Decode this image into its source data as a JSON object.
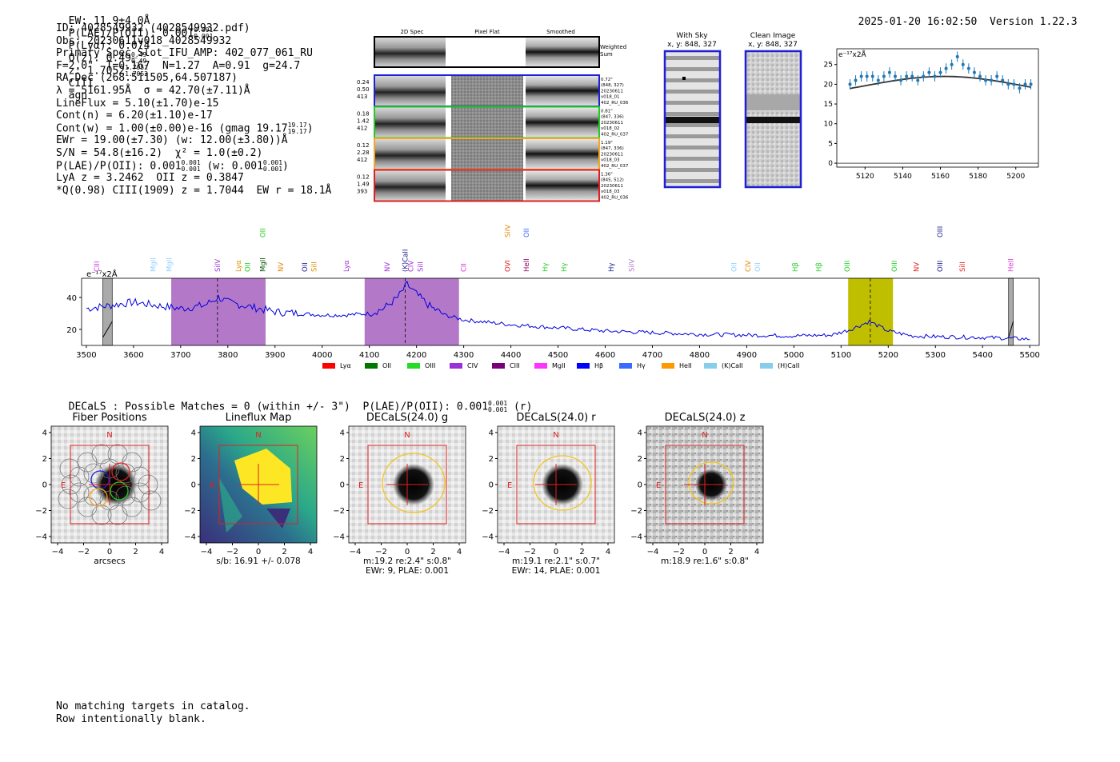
{
  "header": {
    "ew_label": "EW: 11.9±4.0Å",
    "plae_label": "P(LAE)/P(OII): 0.001",
    "plae_hi": "0.001",
    "plae_lo": "0.001",
    "plya_label": "P(Lyα): 0.074",
    "qz_label": "Q(z): 0.49",
    "qz_hi": "0.49",
    "qz_lo": "0.49",
    "z_label": "z: 1.7052",
    "z_hi": "1.7052",
    "z_lo": "1.7052",
    "line_label": "CIII",
    "class_label": "agn",
    "timestamp": "2025-01-20 16:02:50",
    "version": "Version 1.22.3"
  },
  "info": {
    "id": "ID: 4028549932 (4028549932.pdf)",
    "obs": "Obs: 20230611v018_4028549932",
    "primary": "Primary Spec_Slot_IFU_AMP: 402_077_061_RU",
    "params": "F=2.0\"  T=0.167  N=1.27  A=0.91  g=24.7",
    "radec": "RA,Dec (268.511505,64.507187)",
    "lambda": "λ = 5161.95Å  σ = 42.70(±7.11)Å",
    "lineflux": "LineFlux = 5.10(±1.70)e-15",
    "contn": "Cont(n) = 6.20(±1.10)e-17",
    "contw": "Cont(w) = 1.00(±0.00)e-16 (gmag 19.17",
    "gmag_hi": "19.17",
    "gmag_lo": "19.17",
    "contw_end": ")",
    "ewr": "EWr = 19.00(±7.30) (w: 12.00(±3.80))Å",
    "sn": "S/N = 54.8(±16.2)  χ² = 1.0(±0.2)",
    "plae": "P(LAE)/P(OII): 0.001",
    "plae_hi": "0.001",
    "plae_lo": "0.001",
    "plae_w": " (w: 0.001",
    "plae_w_hi": "0.001",
    "plae_w_lo": "0.001",
    "plae_end": ")",
    "lya": "LyA z = 3.2462  OII z = 0.3847",
    "ciii": "*Q(0.98) CIII(1909) z = 1.7044  EW r = 18.1Å"
  },
  "spec2d": {
    "headers": [
      "2D Spec",
      "Pixel Flat",
      "Smoothed"
    ],
    "sum_label": [
      "Weighted",
      "Sum"
    ],
    "rows": [
      {
        "left": [
          "0.24",
          "0.50",
          "413"
        ],
        "right": [
          "0.72\"",
          "(848, 327)",
          "20230611",
          "v018_01",
          "402_RU_036"
        ],
        "color": "#1f1fd6"
      },
      {
        "left": [
          "0.18",
          "1.42",
          "412"
        ],
        "right": [
          "0.81\"",
          "(847, 336)",
          "20230611",
          "v018_02",
          "402_RU_037"
        ],
        "color": "#22cc22"
      },
      {
        "left": [
          "0.12",
          "2.28",
          "412"
        ],
        "right": [
          "1.19\"",
          "(847, 336)",
          "20230611",
          "v018_03",
          "402_RU_037"
        ],
        "color": "#f5a623"
      },
      {
        "left": [
          "0.12",
          "1.49",
          "393"
        ],
        "right": [
          "1.36\"",
          "(845, 512)",
          "20230611",
          "v018_03",
          "402_RU_036"
        ],
        "color": "#e02020"
      }
    ]
  },
  "sky": {
    "with_sky_title": "With Sky",
    "with_sky_coord": "x, y: 848, 327",
    "clean_title": "Clean Image",
    "clean_coord": "x, y: 848, 327"
  },
  "chart_data": [
    {
      "type": "scatter",
      "title": "",
      "unit_label": "e⁻¹⁷x2Å",
      "x": [
        5112,
        5115,
        5118,
        5121,
        5124,
        5127,
        5130,
        5133,
        5136,
        5139,
        5142,
        5145,
        5148,
        5151,
        5154,
        5157,
        5160,
        5163,
        5166,
        5169,
        5172,
        5175,
        5178,
        5181,
        5184,
        5187,
        5190,
        5193,
        5196,
        5199,
        5202,
        5205,
        5208
      ],
      "y": [
        20,
        21,
        22,
        22,
        22,
        21,
        22,
        23,
        22,
        21,
        22,
        22,
        21,
        22,
        23,
        22,
        23,
        24,
        25,
        27,
        25,
        24,
        23,
        22,
        21,
        21,
        22,
        21,
        20,
        20,
        19,
        20,
        20
      ],
      "model": {
        "type": "gaussian",
        "center": 5161.95,
        "peak": 22,
        "base": 15.8,
        "sigma": 42.7
      },
      "xticks": [
        5120,
        5140,
        5160,
        5180,
        5200
      ],
      "yticks": [
        0,
        5,
        10,
        15,
        20,
        25
      ],
      "xlim": [
        5105,
        5212
      ],
      "ylim": [
        -1,
        29
      ]
    },
    {
      "type": "line",
      "title": "",
      "unit_label": "e⁻¹⁷x2Å",
      "xticks": [
        3500,
        3600,
        3700,
        3800,
        3900,
        4000,
        4100,
        4200,
        4300,
        4400,
        4500,
        4600,
        4700,
        4800,
        4900,
        5000,
        5100,
        5200,
        5300,
        5400,
        5500
      ],
      "yticks": [
        20,
        40
      ],
      "xlim": [
        3490,
        5520
      ],
      "ylim": [
        10,
        52
      ],
      "continuum_points": [
        [
          3500,
          33
        ],
        [
          3550,
          35
        ],
        [
          3600,
          37
        ],
        [
          3650,
          35
        ],
        [
          3700,
          33
        ],
        [
          3750,
          35
        ],
        [
          3780,
          40
        ],
        [
          3800,
          37
        ],
        [
          3850,
          34
        ],
        [
          3900,
          31
        ],
        [
          3950,
          30
        ],
        [
          4000,
          29
        ],
        [
          4050,
          29
        ],
        [
          4100,
          30
        ],
        [
          4130,
          33
        ],
        [
          4160,
          40
        ],
        [
          4180,
          48
        ],
        [
          4200,
          42
        ],
        [
          4230,
          34
        ],
        [
          4260,
          29
        ],
        [
          4300,
          26
        ],
        [
          4400,
          23
        ],
        [
          4500,
          21
        ],
        [
          4600,
          19
        ],
        [
          4700,
          18
        ],
        [
          4800,
          17
        ],
        [
          4900,
          16.5
        ],
        [
          5000,
          16
        ],
        [
          5080,
          16.5
        ],
        [
          5120,
          20
        ],
        [
          5160,
          25
        ],
        [
          5200,
          19
        ],
        [
          5250,
          16
        ],
        [
          5300,
          15.5
        ],
        [
          5400,
          15
        ],
        [
          5500,
          14
        ]
      ],
      "highlight_regions": [
        {
          "x0": 3680,
          "x1": 3880,
          "color": "#b478c8"
        },
        {
          "x0": 4090,
          "x1": 4290,
          "color": "#b478c8"
        },
        {
          "x0": 5115,
          "x1": 5210,
          "color": "#bfbf00"
        }
      ],
      "dashed_lines": [
        3778,
        4176,
        5162
      ],
      "hatched_regions": [
        [
          3535,
          3555
        ],
        [
          5455,
          5465
        ]
      ],
      "line_markers": [
        {
          "x": 3522,
          "name": "CIII",
          "color": "#d633d6"
        },
        {
          "x": 3642,
          "name": "MgII",
          "color": "#8fd0ff"
        },
        {
          "x": 3676,
          "name": "MgII",
          "color": "#8fd0ff"
        },
        {
          "x": 3778,
          "name": "SiIV",
          "color": "#9b30d9"
        },
        {
          "x": 3822,
          "name": "Lyα",
          "color": "#e08a00"
        },
        {
          "x": 3842,
          "name": "OII",
          "color": "#22cc22"
        },
        {
          "x": 3874,
          "name": "MgII",
          "color": "#005500"
        },
        {
          "x": 3874,
          "name": "OII",
          "color": "#22cc22",
          "high": true
        },
        {
          "x": 3912,
          "name": "NV",
          "color": "#e08a00"
        },
        {
          "x": 3963,
          "name": "OII",
          "color": "#1a1a8c"
        },
        {
          "x": 3983,
          "name": "SiII",
          "color": "#e08a00"
        },
        {
          "x": 4051,
          "name": "Lyα",
          "color": "#9b30d9"
        },
        {
          "x": 4138,
          "name": "NV",
          "color": "#9b30d9"
        },
        {
          "x": 4176,
          "name": "(K)CaII",
          "color": "#1a1a8c"
        },
        {
          "x": 4188,
          "name": "CIV",
          "color": "#9b30d9"
        },
        {
          "x": 4208,
          "name": "SiII",
          "color": "#9b30d9"
        },
        {
          "x": 4300,
          "name": "CII",
          "color": "#d633d6"
        },
        {
          "x": 4393,
          "name": "OVI",
          "color": "#e02020"
        },
        {
          "x": 4393,
          "name": "SiIV",
          "color": "#e08a00",
          "high": true
        },
        {
          "x": 4433,
          "name": "HeII",
          "color": "#8b005a"
        },
        {
          "x": 4433,
          "name": "OII",
          "color": "#3a6aff",
          "high": true
        },
        {
          "x": 4473,
          "name": "Hγ",
          "color": "#22cc22"
        },
        {
          "x": 4513,
          "name": "Hγ",
          "color": "#22cc22"
        },
        {
          "x": 4613,
          "name": "Hγ",
          "color": "#1a1a8c"
        },
        {
          "x": 4656,
          "name": "SiIV",
          "color": "#b478c8"
        },
        {
          "x": 4873,
          "name": "OII",
          "color": "#8fd0ff"
        },
        {
          "x": 4903,
          "name": "CIV",
          "color": "#e08a00"
        },
        {
          "x": 4923,
          "name": "OII",
          "color": "#8fd0ff"
        },
        {
          "x": 5003,
          "name": "Hβ",
          "color": "#22cc22"
        },
        {
          "x": 5053,
          "name": "Hβ",
          "color": "#22cc22"
        },
        {
          "x": 5113,
          "name": "OIII",
          "color": "#22cc22"
        },
        {
          "x": 5213,
          "name": "OIII",
          "color": "#22cc22"
        },
        {
          "x": 5260,
          "name": "NV",
          "color": "#e02020"
        },
        {
          "x": 5310,
          "name": "OIII",
          "color": "#1a1a8c"
        },
        {
          "x": 5310,
          "name": "OIII",
          "color": "#1a1a8c",
          "high": true
        },
        {
          "x": 5357,
          "name": "SiII",
          "color": "#e02020"
        },
        {
          "x": 5460,
          "name": "HeII",
          "color": "#d633d6"
        }
      ],
      "legend": [
        {
          "name": "Lyα",
          "color": "#ff0000"
        },
        {
          "name": "OII",
          "color": "#007700"
        },
        {
          "name": "OIII",
          "color": "#22dd22"
        },
        {
          "name": "CIV",
          "color": "#9b30d9"
        },
        {
          "name": "CIII",
          "color": "#7a007a"
        },
        {
          "name": "MgII",
          "color": "#ff33ff"
        },
        {
          "name": "Hβ",
          "color": "#0000ff"
        },
        {
          "name": "Hγ",
          "color": "#3a6aff"
        },
        {
          "name": "HeII",
          "color": "#ff9900"
        },
        {
          "name": "(K)CaII",
          "color": "#87ceeb"
        },
        {
          "name": "(H)CaII",
          "color": "#87ceeb"
        }
      ]
    }
  ],
  "decals": {
    "summary": "DECaLS : Possible Matches = 0 (within +/- 3\")  P(LAE)/P(OII): 0.001",
    "summary_hi": "0.001",
    "summary_lo": "0.001",
    "summary_end": "(r)",
    "panels": [
      {
        "title": "Fiber Positions",
        "caption1": "arcsecs",
        "caption2": ""
      },
      {
        "title": "Lineflux Map",
        "caption1": "s/b: 16.91 +/- 0.078",
        "caption2": ""
      },
      {
        "title": "DECaLS(24.0) g",
        "caption1": "m:19.2  re:2.4\"  s:0.8\"",
        "caption2": "EWr: 9, PLAE: 0.001"
      },
      {
        "title": "DECaLS(24.0) r",
        "caption1": "m:19.1  re:2.1\"  s:0.7\"",
        "caption2": "EWr: 14, PLAE: 0.001"
      },
      {
        "title": "DECaLS(24.0) z",
        "caption1": "m:18.9  re:1.6\"  s:0.8\"",
        "caption2": ""
      }
    ],
    "north_label": "N",
    "east_label": "E",
    "axis_ticks": [
      "−4",
      "−2",
      "0",
      "2",
      "4"
    ],
    "y_ticks": [
      "4",
      "2",
      "0",
      "−2",
      "−4"
    ]
  },
  "footer": {
    "line1": "No matching targets in catalog.",
    "line2": "Row intentionally blank."
  }
}
